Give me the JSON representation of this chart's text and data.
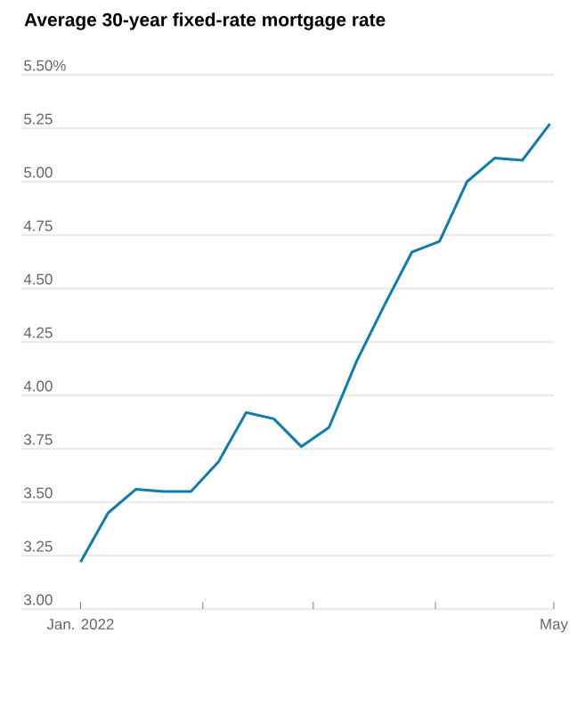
{
  "chart_data": {
    "type": "line",
    "title": "Average 30-year fixed-rate mortgage rate",
    "x": [
      "2022-01-01",
      "2022-01-08",
      "2022-01-15",
      "2022-01-22",
      "2022-01-29",
      "2022-02-05",
      "2022-02-12",
      "2022-02-19",
      "2022-02-26",
      "2022-03-05",
      "2022-03-12",
      "2022-03-19",
      "2022-03-26",
      "2022-04-02",
      "2022-04-09",
      "2022-04-16",
      "2022-04-23",
      "2022-04-30"
    ],
    "series": [
      {
        "color": "#0e7cad",
        "values": [
          3.22,
          3.45,
          3.56,
          3.55,
          3.55,
          3.69,
          3.92,
          3.89,
          3.76,
          3.85,
          4.16,
          4.42,
          4.67,
          4.72,
          5.0,
          5.11,
          5.1,
          5.27
        ]
      }
    ],
    "xlim": [
      "2021-12-17",
      "2022-05-01"
    ],
    "xticks": [
      {
        "value": "2022-01-01",
        "label": "Jan. 2022"
      },
      {
        "value": "2022-02-01",
        "label": null
      },
      {
        "value": "2022-03-01",
        "label": null
      },
      {
        "value": "2022-04-01",
        "label": null
      },
      {
        "value": "2022-05-01",
        "label": "May"
      }
    ],
    "ylim": [
      3.0,
      5.5
    ],
    "yticks": [
      {
        "value": 3.0,
        "label": "3.00"
      },
      {
        "value": 3.25,
        "label": "3.25"
      },
      {
        "value": 3.5,
        "label": "3.50"
      },
      {
        "value": 3.75,
        "label": "3.75"
      },
      {
        "value": 4.0,
        "label": "4.00"
      },
      {
        "value": 4.25,
        "label": "4.25"
      },
      {
        "value": 4.5,
        "label": "4.50"
      },
      {
        "value": 4.75,
        "label": "4.75"
      },
      {
        "value": 5.0,
        "label": "5.00"
      },
      {
        "value": 5.25,
        "label": "5.25"
      },
      {
        "value": 5.5,
        "label": "5.50%"
      }
    ],
    "grid": "y",
    "marker": "none",
    "line_style": "solid"
  }
}
